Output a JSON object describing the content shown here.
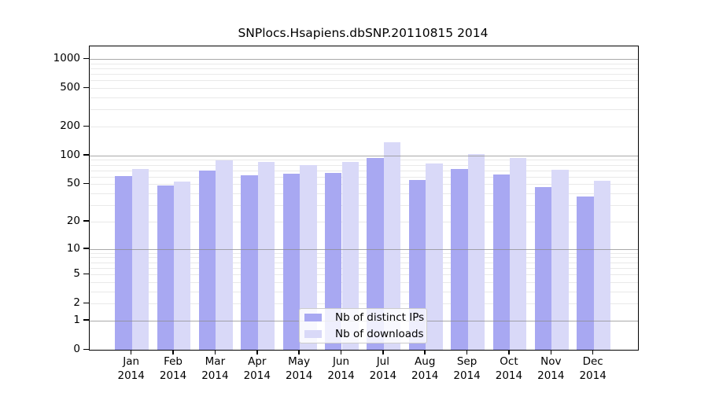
{
  "chart_data": {
    "type": "bar",
    "title": "SNPlocs.Hsapiens.dbSNP.20110815 2014",
    "categories": [
      "Jan 2014",
      "Feb 2014",
      "Mar 2014",
      "Apr 2014",
      "May 2014",
      "Jun 2014",
      "Jul 2014",
      "Aug 2014",
      "Sep 2014",
      "Oct 2014",
      "Nov 2014",
      "Dec 2014"
    ],
    "series": [
      {
        "name": "Nb of distinct IPs",
        "color": "#a8a8f2",
        "values": [
          61,
          49,
          69,
          62,
          65,
          66,
          94,
          56,
          73,
          63,
          47,
          37
        ]
      },
      {
        "name": "Nb of downloads",
        "color": "#d9d9f8",
        "values": [
          73,
          53,
          89,
          85,
          80,
          86,
          137,
          83,
          103,
          94,
          71,
          54
        ]
      }
    ],
    "xlabel": "",
    "ylabel": "",
    "yscale": "log10(value+1)",
    "yticks": [
      0,
      1,
      2,
      5,
      10,
      20,
      50,
      100,
      200,
      500,
      1000
    ],
    "ylim": [
      0,
      1350
    ],
    "grid": "horizontal, major (decades) over bars + light minor lines",
    "legend_position": "inside bottom-center",
    "legend_items": [
      "Nb of distinct IPs",
      "Nb of downloads"
    ]
  },
  "colors": {
    "background": "#ffffff",
    "axis": "#000000",
    "major_gridline": "#8c8c8c",
    "minor_gridline": "#e9e9e9",
    "legend_border": "#cccccc"
  }
}
